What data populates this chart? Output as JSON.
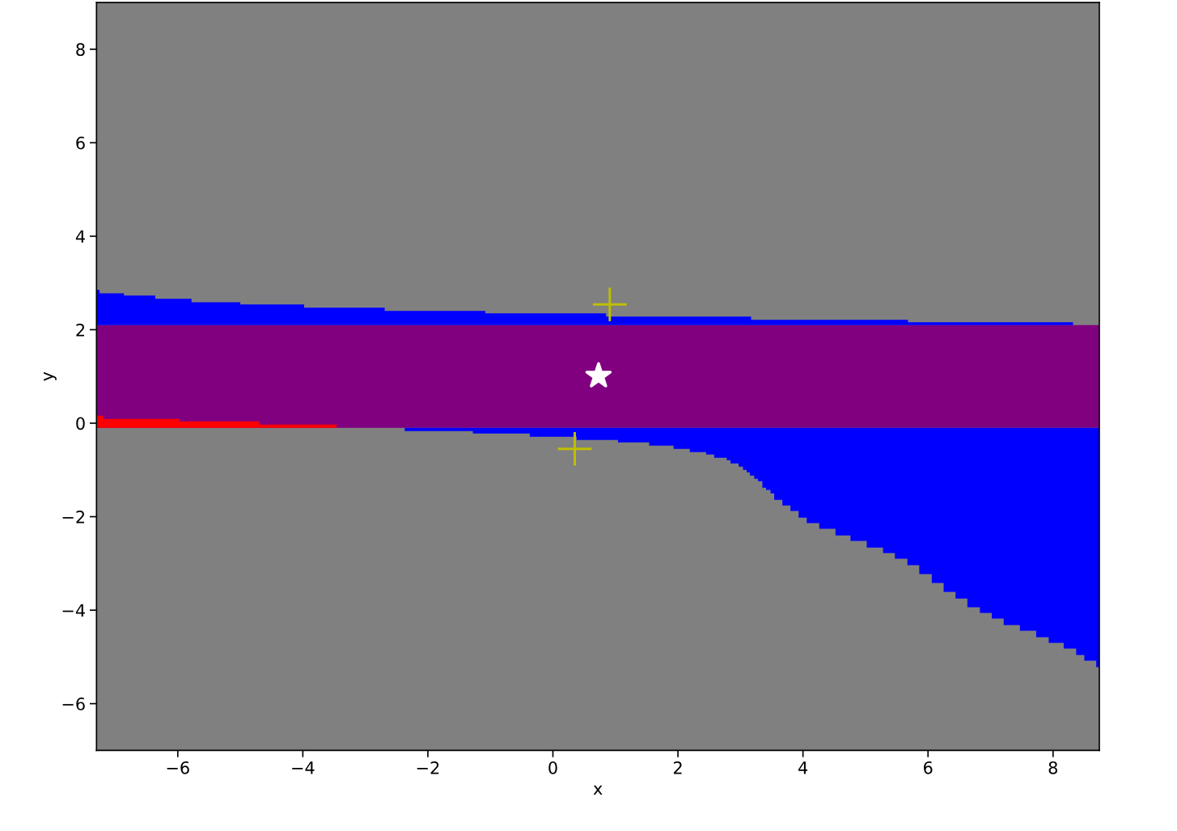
{
  "chart_data": {
    "type": "area",
    "xlabel": "x",
    "ylabel": "y",
    "xlim": [
      -7.3,
      8.74
    ],
    "ylim": [
      -7,
      9
    ],
    "xticks": [
      {
        "value": -6,
        "label": "−6"
      },
      {
        "value": -4,
        "label": "−4"
      },
      {
        "value": -2,
        "label": "−2"
      },
      0,
      2,
      4,
      6,
      8
    ],
    "yticks": [
      {
        "value": -6,
        "label": "−6"
      },
      {
        "value": -4,
        "label": "−4"
      },
      {
        "value": -2,
        "label": "−2"
      },
      0,
      2,
      4,
      6,
      8
    ],
    "grid": false,
    "legend": false,
    "bands": [
      {
        "axis": "y",
        "from": -0.1,
        "to": 2.1,
        "color": "#800080"
      }
    ],
    "series": [
      {
        "color": "#0000ff",
        "x": [
          -7.3,
          -7.25,
          -6.86,
          -6.36,
          -5.78,
          -5.0,
          -3.98,
          -2.69,
          -1.08,
          0.85,
          3.17,
          5.68,
          8.32,
          8.74
        ],
        "values": [
          2.85,
          2.78,
          2.73,
          2.66,
          2.59,
          2.54,
          2.47,
          2.4,
          2.35,
          2.28,
          2.21,
          2.16,
          2.1,
          2.1
        ]
      },
      {
        "color": "#ff0000",
        "x": [
          -7.3,
          -7.19,
          -5.97,
          -4.69,
          -3.46
        ],
        "values": [
          0.16,
          0.09,
          0.04,
          -0.03,
          -0.1
        ]
      },
      {
        "color": "#0000ff",
        "x": [
          -2.37,
          -1.28,
          -0.37,
          0.38,
          1.04,
          1.54,
          1.93,
          2.19,
          2.45,
          2.58,
          2.78,
          2.84,
          2.97,
          3.04,
          3.1,
          3.15,
          3.22,
          3.28,
          3.35,
          3.41,
          3.48,
          3.54,
          3.67,
          3.8,
          3.93,
          4.06,
          4.26,
          4.52,
          4.76,
          5.02,
          5.28,
          5.47,
          5.67,
          5.86,
          6.06,
          6.25,
          6.44,
          6.63,
          6.83,
          7.02,
          7.21,
          7.47,
          7.73,
          7.93,
          8.17,
          8.37,
          8.5,
          8.69,
          8.74
        ],
        "values": [
          -0.17,
          -0.22,
          -0.29,
          -0.36,
          -0.41,
          -0.48,
          -0.55,
          -0.62,
          -0.67,
          -0.74,
          -0.79,
          -0.86,
          -0.93,
          -1.0,
          -1.05,
          -1.12,
          -1.19,
          -1.24,
          -1.38,
          -1.43,
          -1.5,
          -1.64,
          -1.76,
          -1.88,
          -2.02,
          -2.14,
          -2.26,
          -2.4,
          -2.52,
          -2.66,
          -2.78,
          -2.9,
          -3.04,
          -3.23,
          -3.42,
          -3.61,
          -3.75,
          -3.94,
          -4.06,
          -4.18,
          -4.32,
          -4.44,
          -4.58,
          -4.7,
          -4.82,
          -4.96,
          -5.08,
          -5.22,
          -5.22
        ]
      },
      {
        "type": "scatter",
        "color": "#bfbf00",
        "marker": "cross",
        "x": [
          0.91,
          0.35
        ],
        "values": [
          2.54,
          -0.55
        ]
      },
      {
        "type": "scatter",
        "color": "#ffffff",
        "marker": "star",
        "x": [
          0.73
        ],
        "values": [
          1.01
        ]
      }
    ]
  }
}
